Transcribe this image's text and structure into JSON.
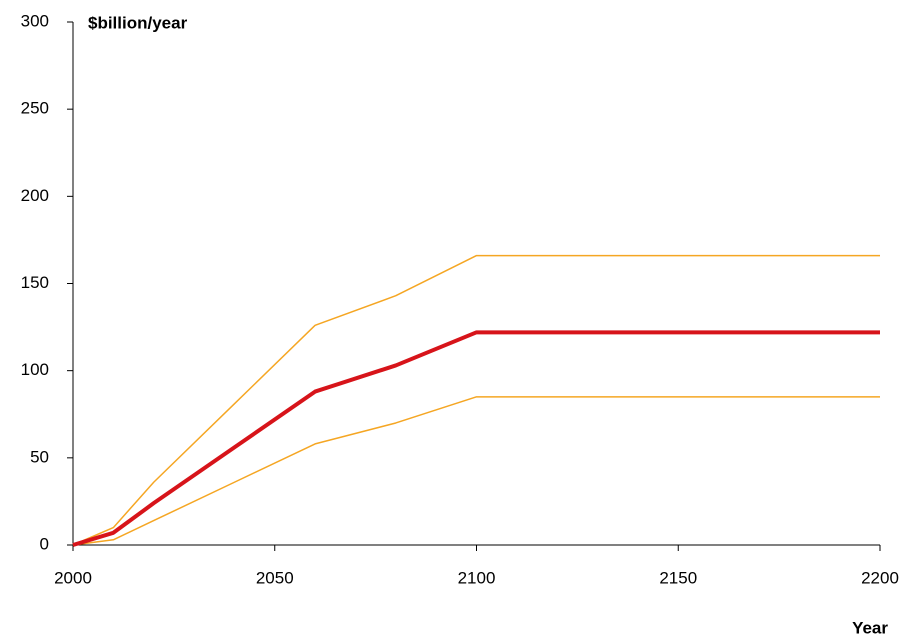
{
  "chart_data": {
    "type": "line",
    "y_label": "$billion/year",
    "x_label": "Year",
    "x": [
      2000,
      2010,
      2020,
      2040,
      2060,
      2080,
      2100,
      2200
    ],
    "series": [
      {
        "color": "#f5a623",
        "width": 1.5,
        "values": [
          0,
          10,
          36,
          81,
          126,
          143,
          166,
          166
        ]
      },
      {
        "color": "#f5a623",
        "width": 1.5,
        "values": [
          0,
          3,
          14,
          36,
          58,
          70,
          85,
          85
        ]
      },
      {
        "color": "#d7141a",
        "width": 4,
        "values": [
          0,
          7,
          24,
          56,
          88,
          103,
          122,
          122
        ]
      }
    ],
    "xlim": [
      2000,
      2200
    ],
    "xticks": [
      2000,
      2050,
      2100,
      2150,
      2200
    ],
    "ylim": [
      0,
      300
    ],
    "yticks": [
      0,
      50,
      100,
      150,
      200,
      250,
      300
    ],
    "grid": false
  }
}
